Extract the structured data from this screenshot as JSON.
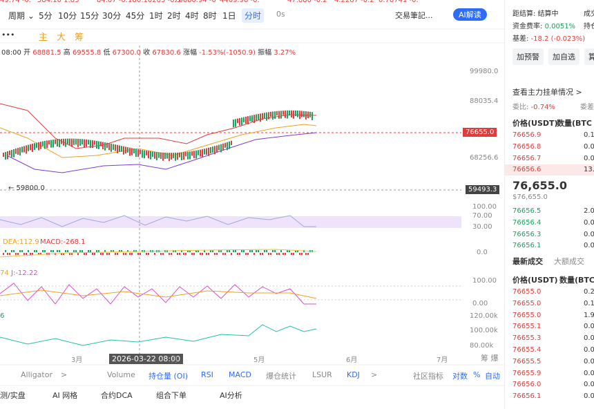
{
  "ticker_strip": [
    "49.74 -0.",
    "584.10 1.83",
    "84.07 -0.18",
    "0.10285 -0.5",
    "76680.94 -0",
    "4469.98 -0.",
    "47.880 -0.2",
    "4.2287 -0.2",
    "0.78741 -0."
  ],
  "toolbar": {
    "period": "周期",
    "intervals": [
      "5分",
      "10分",
      "15分",
      "30分",
      "45分",
      "1时",
      "2时",
      "4时",
      "8时",
      "1日",
      "分时"
    ],
    "refresh": "0s",
    "notes": "交易筆記...",
    "ai": "AI解读",
    "more": "•••",
    "main": "主",
    "big": "大",
    "chips": "筹"
  },
  "info_line": {
    "time": "08:00",
    "open_label": "开",
    "open": "68881.5",
    "high_label": "高",
    "high": "69555.8",
    "low_label": "低",
    "low": "67300.0",
    "close_label": "收",
    "close": "67830.6",
    "change_label": "涨幅",
    "change": "-1.53%(-1050.9)",
    "amp_label": "振幅",
    "amp": "3.27%"
  },
  "price_axis": [
    "99980.0",
    "88035.4",
    "68256.6"
  ],
  "last_price_tag": "76655.0",
  "cross_price_tag": "59493.3",
  "low_marker": "← 59800.0",
  "rsi_axis": [
    "100.00",
    "70.00",
    "30.00"
  ],
  "macd": {
    "dea": "DEA:112.9",
    "macd": "MACD:-268.1",
    "axis": "0.0"
  },
  "kdj": {
    "k": "74",
    "j": "J:-12.22",
    "axis": [
      "100.00",
      "0.00"
    ]
  },
  "oi": {
    "label": "6",
    "axis": [
      "120.00k",
      "100.00k",
      "80.00k"
    ]
  },
  "x_axis": [
    "3月",
    "月",
    "5月",
    "6月",
    "7月"
  ],
  "cursor_time": "2026-03-22 08:00",
  "corner": "筹 爆",
  "indicator_tabs": [
    "Alligator",
    ">",
    "Volume",
    "持仓量 (OI)",
    "RSI",
    "MACD",
    "爆仓统计",
    "LSUR",
    "KDJ",
    ">",
    "社区指标",
    "对数",
    "%",
    "自动"
  ],
  "bottom_tabs": [
    "测/实盘",
    "AI 网格",
    "合约DCA",
    "组合下单",
    "AI分析"
  ],
  "panel": {
    "settle": "距结算: 结算中",
    "deal": "成交",
    "funding_label": "资金费率:",
    "funding": "0.0051%",
    "oi": "持仓",
    "basis_label": "基差:",
    "basis": "-18.2 (-0.023%)",
    "buttons": [
      "加预警",
      "加自选",
      "算"
    ],
    "main_orders": "查看主力挂单情况 >",
    "ratio_label": "委比:",
    "ratio": "-0.74%",
    "diff": "委差",
    "book_header": [
      "价格(USDT)",
      "数量(BTC"
    ],
    "asks": [
      [
        "76656.9",
        "0.1"
      ],
      [
        "76656.8",
        "0.0"
      ],
      [
        "76656.7",
        "0.0"
      ],
      [
        "76656.6",
        "13.3"
      ]
    ],
    "last": "76,655.0",
    "last_usd": "$76,655.0",
    "bids": [
      [
        "76656.5",
        "2.0"
      ],
      [
        "76656.4",
        "0.0"
      ],
      [
        "76656.3",
        "0.0"
      ],
      [
        "76656.1",
        "0.0"
      ]
    ],
    "trade_tabs": [
      "最新成交",
      "大额成交"
    ],
    "trade_header": [
      "价格(USDT)",
      "数量(BTC)"
    ],
    "trades": [
      [
        "76655.0",
        "0.2"
      ],
      [
        "76655.0",
        "0.1"
      ],
      [
        "76655.0",
        "1.9"
      ],
      [
        "76655.1",
        "0.0"
      ],
      [
        "76655.3",
        "0.0"
      ],
      [
        "76655.4",
        "0.0"
      ],
      [
        "76655.5",
        "0.0"
      ],
      [
        "76655.9",
        "0.0"
      ],
      [
        "76656.0",
        "0.0"
      ],
      [
        "76656.1",
        "0.0"
      ]
    ]
  }
}
